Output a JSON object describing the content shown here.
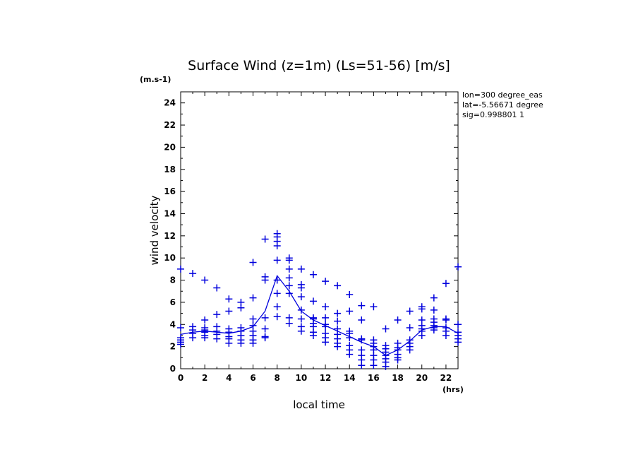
{
  "chart_data": {
    "type": "scatter",
    "title": "Surface Wind (z=1m) (Ls=51-56) [m/s]",
    "unit_label": "(m.s-1)",
    "xlabel": "local time",
    "x_unit": "(hrs)",
    "ylabel": "wind velocity",
    "xlim": [
      0,
      23
    ],
    "ylim": [
      0,
      25
    ],
    "x_ticks": [
      0,
      2,
      4,
      6,
      8,
      10,
      12,
      14,
      16,
      18,
      20,
      22
    ],
    "y_ticks": [
      0,
      2,
      4,
      6,
      8,
      10,
      12,
      14,
      16,
      18,
      20,
      22,
      24
    ],
    "grid": false,
    "annotations": [
      "lon=300 degree_eas",
      "lat=-5.56671 degree",
      "sig=0.998801 1"
    ],
    "colors": {
      "series": "#0000dd",
      "axes": "#000000"
    },
    "line_series": {
      "x": [
        0,
        1,
        2,
        3,
        4,
        5,
        6,
        7,
        8,
        9,
        10,
        11,
        12,
        13,
        14,
        15,
        16,
        17,
        18,
        19,
        20,
        21,
        22,
        23
      ],
      "y": [
        3.1,
        3.3,
        3.4,
        3.3,
        3.2,
        3.4,
        3.8,
        5.2,
        8.4,
        7.0,
        5.2,
        4.4,
        3.9,
        3.4,
        2.9,
        2.4,
        2.0,
        1.2,
        1.7,
        2.5,
        3.5,
        3.8,
        3.8,
        3.2
      ]
    },
    "scatter_points": [
      [
        0,
        9.0
      ],
      [
        0,
        3.7
      ],
      [
        0,
        2.8
      ],
      [
        0,
        2.6
      ],
      [
        0,
        2.4
      ],
      [
        0,
        2.2
      ],
      [
        1,
        8.6
      ],
      [
        1,
        3.8
      ],
      [
        1,
        3.5
      ],
      [
        1,
        3.2
      ],
      [
        1,
        2.8
      ],
      [
        2,
        8.0
      ],
      [
        2,
        4.4
      ],
      [
        2,
        3.7
      ],
      [
        2,
        3.5
      ],
      [
        2,
        3.3
      ],
      [
        2,
        3.0
      ],
      [
        2,
        2.8
      ],
      [
        3,
        7.3
      ],
      [
        3,
        4.9
      ],
      [
        3,
        3.8
      ],
      [
        3,
        3.4
      ],
      [
        3,
        3.1
      ],
      [
        3,
        2.7
      ],
      [
        4,
        6.3
      ],
      [
        4,
        5.2
      ],
      [
        4,
        3.6
      ],
      [
        4,
        3.3
      ],
      [
        4,
        2.9
      ],
      [
        4,
        2.7
      ],
      [
        4,
        2.3
      ],
      [
        5,
        6.0
      ],
      [
        5,
        5.5
      ],
      [
        5,
        3.7
      ],
      [
        5,
        3.4
      ],
      [
        5,
        3.0
      ],
      [
        5,
        2.6
      ],
      [
        5,
        2.3
      ],
      [
        6,
        9.6
      ],
      [
        6,
        6.4
      ],
      [
        6,
        4.5
      ],
      [
        6,
        3.9
      ],
      [
        6,
        3.4
      ],
      [
        6,
        3.0
      ],
      [
        6,
        2.6
      ],
      [
        6,
        2.3
      ],
      [
        7,
        11.7
      ],
      [
        7,
        8.3
      ],
      [
        7,
        8.0
      ],
      [
        7,
        4.6
      ],
      [
        7,
        3.6
      ],
      [
        7,
        2.9
      ],
      [
        7,
        2.8
      ],
      [
        8,
        12.2
      ],
      [
        8,
        11.9
      ],
      [
        8,
        11.5
      ],
      [
        8,
        11.1
      ],
      [
        8,
        9.8
      ],
      [
        8,
        8.0
      ],
      [
        8,
        6.8
      ],
      [
        8,
        5.6
      ],
      [
        8,
        4.7
      ],
      [
        9,
        10.0
      ],
      [
        9,
        9.8
      ],
      [
        9,
        9.0
      ],
      [
        9,
        8.2
      ],
      [
        9,
        7.5
      ],
      [
        9,
        6.8
      ],
      [
        9,
        4.6
      ],
      [
        9,
        4.1
      ],
      [
        10,
        9.0
      ],
      [
        10,
        7.6
      ],
      [
        10,
        7.3
      ],
      [
        10,
        6.5
      ],
      [
        10,
        5.3
      ],
      [
        10,
        4.5
      ],
      [
        10,
        3.8
      ],
      [
        10,
        3.4
      ],
      [
        11,
        8.5
      ],
      [
        11,
        6.1
      ],
      [
        11,
        4.6
      ],
      [
        11,
        4.5
      ],
      [
        11,
        4.1
      ],
      [
        11,
        3.8
      ],
      [
        11,
        3.3
      ],
      [
        11,
        3.0
      ],
      [
        12,
        7.9
      ],
      [
        12,
        5.6
      ],
      [
        12,
        4.6
      ],
      [
        12,
        4.0
      ],
      [
        12,
        3.8
      ],
      [
        12,
        3.2
      ],
      [
        12,
        2.8
      ],
      [
        12,
        2.4
      ],
      [
        13,
        7.5
      ],
      [
        13,
        5.0
      ],
      [
        13,
        4.3
      ],
      [
        13,
        3.6
      ],
      [
        13,
        3.1
      ],
      [
        13,
        2.7
      ],
      [
        13,
        2.3
      ],
      [
        13,
        2.0
      ],
      [
        14,
        6.7
      ],
      [
        14,
        5.2
      ],
      [
        14,
        3.4
      ],
      [
        14,
        3.2
      ],
      [
        14,
        2.8
      ],
      [
        14,
        2.1
      ],
      [
        14,
        1.7
      ],
      [
        14,
        1.3
      ],
      [
        15,
        5.7
      ],
      [
        15,
        4.4
      ],
      [
        15,
        2.7
      ],
      [
        15,
        2.6
      ],
      [
        15,
        1.7
      ],
      [
        15,
        1.2
      ],
      [
        15,
        0.8
      ],
      [
        15,
        0.3
      ],
      [
        16,
        5.6
      ],
      [
        16,
        2.6
      ],
      [
        16,
        2.3
      ],
      [
        16,
        2.0
      ],
      [
        16,
        1.7
      ],
      [
        16,
        1.2
      ],
      [
        16,
        0.8
      ],
      [
        16,
        0.3
      ],
      [
        17,
        3.6
      ],
      [
        17,
        2.1
      ],
      [
        17,
        1.8
      ],
      [
        17,
        1.5
      ],
      [
        17,
        1.2
      ],
      [
        17,
        0.9
      ],
      [
        17,
        0.6
      ],
      [
        17,
        0.2
      ],
      [
        18,
        4.4
      ],
      [
        18,
        2.3
      ],
      [
        18,
        1.9
      ],
      [
        18,
        1.7
      ],
      [
        18,
        1.3
      ],
      [
        18,
        1.0
      ],
      [
        18,
        0.8
      ],
      [
        19,
        5.2
      ],
      [
        19,
        3.7
      ],
      [
        19,
        2.6
      ],
      [
        19,
        2.3
      ],
      [
        19,
        2.0
      ],
      [
        19,
        1.7
      ],
      [
        20,
        5.6
      ],
      [
        20,
        5.4
      ],
      [
        20,
        4.4
      ],
      [
        20,
        3.9
      ],
      [
        20,
        3.6
      ],
      [
        20,
        3.4
      ],
      [
        20,
        3.0
      ],
      [
        21,
        6.4
      ],
      [
        21,
        5.3
      ],
      [
        21,
        4.5
      ],
      [
        21,
        4.2
      ],
      [
        21,
        3.9
      ],
      [
        21,
        3.7
      ],
      [
        21,
        3.5
      ],
      [
        22,
        7.7
      ],
      [
        22,
        4.5
      ],
      [
        22,
        4.4
      ],
      [
        22,
        3.7
      ],
      [
        22,
        3.4
      ],
      [
        22,
        3.0
      ],
      [
        23,
        9.2
      ],
      [
        23,
        4.0
      ],
      [
        23,
        3.3
      ],
      [
        23,
        3.0
      ],
      [
        23,
        2.7
      ],
      [
        23,
        2.4
      ]
    ]
  }
}
